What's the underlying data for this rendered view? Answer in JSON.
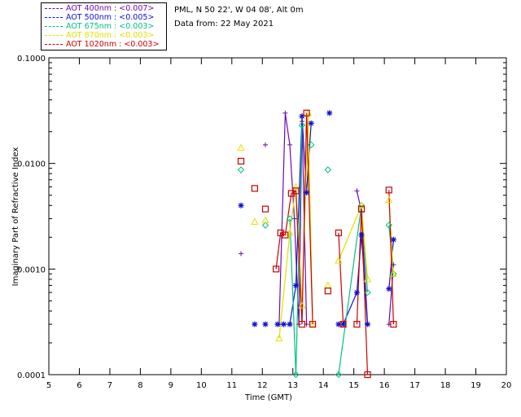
{
  "header": {
    "site_line": "PML, N 50 22', W 04 08', Alt 0m",
    "date_line": "Data from: 22 May 2021"
  },
  "legend": [
    {
      "label": "AOT  400nm : <0.007>",
      "color": "#6a0dad"
    },
    {
      "label": "AOT  500nm : <0.005>",
      "color": "#1010d0"
    },
    {
      "label": "AOT  675nm : <0.003>",
      "color": "#00c080"
    },
    {
      "label": "AOT  870nm : <0.003>",
      "color": "#e0e000"
    },
    {
      "label": "AOT 1020nm : <0.003>",
      "color": "#cc0000"
    }
  ],
  "chart_data": {
    "type": "scatter",
    "title": "",
    "xlabel": "Time (GMT)",
    "ylabel": "Imaginary Part of Refractive Index",
    "xlim": [
      5,
      20
    ],
    "ylim": [
      0.0001,
      0.1
    ],
    "yscale": "log",
    "x_ticks": [
      5,
      6,
      7,
      8,
      9,
      10,
      11,
      12,
      13,
      14,
      15,
      16,
      17,
      18,
      19,
      20
    ],
    "y_ticks": [
      {
        "value": 0.0001,
        "label": "0.0001"
      },
      {
        "value": 0.001,
        "label": "0.0010"
      },
      {
        "value": 0.01,
        "label": "0.0100"
      },
      {
        "value": 0.1,
        "label": "0.1000"
      }
    ],
    "series": [
      {
        "name": "AOT 400nm",
        "color": "#6a0dad",
        "marker": "plus",
        "points": [
          [
            11.3,
            0.0014
          ],
          [
            12.1,
            0.015
          ],
          [
            12.55,
            0.0003
          ],
          [
            12.75,
            0.03
          ],
          [
            12.9,
            0.015
          ],
          [
            13.05,
            0.003
          ],
          [
            13.2,
            0.0003
          ],
          [
            13.3,
            0.025
          ],
          [
            13.45,
            0.0003
          ],
          [
            15.1,
            0.0055
          ],
          [
            15.25,
            0.0035
          ],
          [
            15.45,
            0.0003
          ],
          [
            16.15,
            0.0003
          ],
          [
            16.3,
            0.0011
          ]
        ],
        "line_groups": [
          [
            2,
            3,
            4,
            5,
            6,
            7,
            8
          ],
          [
            9,
            10,
            11
          ],
          [
            12,
            13
          ]
        ]
      },
      {
        "name": "AOT 500nm",
        "color": "#1010d0",
        "marker": "asterisk",
        "points": [
          [
            11.3,
            0.004
          ],
          [
            11.75,
            0.0003
          ],
          [
            12.1,
            0.0003
          ],
          [
            12.5,
            0.0003
          ],
          [
            12.7,
            0.0003
          ],
          [
            12.9,
            0.0003
          ],
          [
            13.1,
            0.0007
          ],
          [
            13.3,
            0.028
          ],
          [
            13.45,
            0.0053
          ],
          [
            13.6,
            0.024
          ],
          [
            14.2,
            0.03
          ],
          [
            14.5,
            0.0003
          ],
          [
            14.65,
            0.0003
          ],
          [
            15.1,
            0.0006
          ],
          [
            15.25,
            0.0021
          ],
          [
            15.45,
            0.0003
          ],
          [
            16.15,
            0.00065
          ],
          [
            16.3,
            0.0019
          ]
        ],
        "line_groups": [
          [
            3,
            4,
            5,
            6,
            7,
            8,
            9
          ],
          [
            12,
            13,
            14,
            15
          ],
          [
            16,
            17
          ]
        ]
      },
      {
        "name": "AOT 675nm",
        "color": "#00c080",
        "marker": "diamond",
        "points": [
          [
            11.3,
            0.0087
          ],
          [
            12.1,
            0.0026
          ],
          [
            12.9,
            0.003
          ],
          [
            13.1,
            0.0001
          ],
          [
            13.3,
            0.023
          ],
          [
            13.6,
            0.015
          ],
          [
            14.15,
            0.0087
          ],
          [
            14.5,
            0.0001
          ],
          [
            15.25,
            0.004
          ],
          [
            15.45,
            0.0006
          ],
          [
            16.15,
            0.0026
          ],
          [
            16.3,
            0.0009
          ]
        ],
        "line_groups": [
          [
            2,
            3,
            4
          ],
          [
            7,
            8,
            9
          ],
          [
            10,
            11
          ]
        ]
      },
      {
        "name": "AOT 870nm",
        "color": "#e0e000",
        "marker": "triangle",
        "points": [
          [
            11.3,
            0.014
          ],
          [
            11.75,
            0.0028
          ],
          [
            12.1,
            0.0029
          ],
          [
            12.55,
            0.00022
          ],
          [
            12.9,
            0.0022
          ],
          [
            13.1,
            0.006
          ],
          [
            13.3,
            0.00045
          ],
          [
            13.5,
            0.03
          ],
          [
            13.65,
            0.0003
          ],
          [
            14.15,
            0.0007
          ],
          [
            14.5,
            0.0012
          ],
          [
            15.25,
            0.004
          ],
          [
            15.45,
            0.0008
          ],
          [
            16.15,
            0.0045
          ],
          [
            16.3,
            0.0009
          ]
        ],
        "line_groups": [
          [
            3,
            4,
            5,
            6,
            7,
            8
          ],
          [
            10,
            11,
            12
          ],
          [
            13,
            14
          ]
        ]
      },
      {
        "name": "AOT 1020nm",
        "color": "#cc0000",
        "marker": "square",
        "points": [
          [
            11.3,
            0.0105
          ],
          [
            11.75,
            0.0058
          ],
          [
            12.1,
            0.0037
          ],
          [
            12.45,
            0.001
          ],
          [
            12.6,
            0.0022
          ],
          [
            12.75,
            0.0021
          ],
          [
            12.95,
            0.0052
          ],
          [
            13.1,
            0.0055
          ],
          [
            13.3,
            0.0003
          ],
          [
            13.45,
            0.03
          ],
          [
            13.65,
            0.0003
          ],
          [
            14.15,
            0.00062
          ],
          [
            14.5,
            0.0022
          ],
          [
            14.65,
            0.0003
          ],
          [
            15.1,
            0.0003
          ],
          [
            15.25,
            0.0037
          ],
          [
            15.45,
            0.0001
          ],
          [
            16.15,
            0.0056
          ],
          [
            16.3,
            0.0003
          ]
        ],
        "line_groups": [
          [
            3,
            4,
            5,
            6,
            7,
            8,
            9,
            10
          ],
          [
            12,
            13
          ],
          [
            14,
            15,
            16
          ],
          [
            17,
            18
          ]
        ]
      }
    ]
  }
}
